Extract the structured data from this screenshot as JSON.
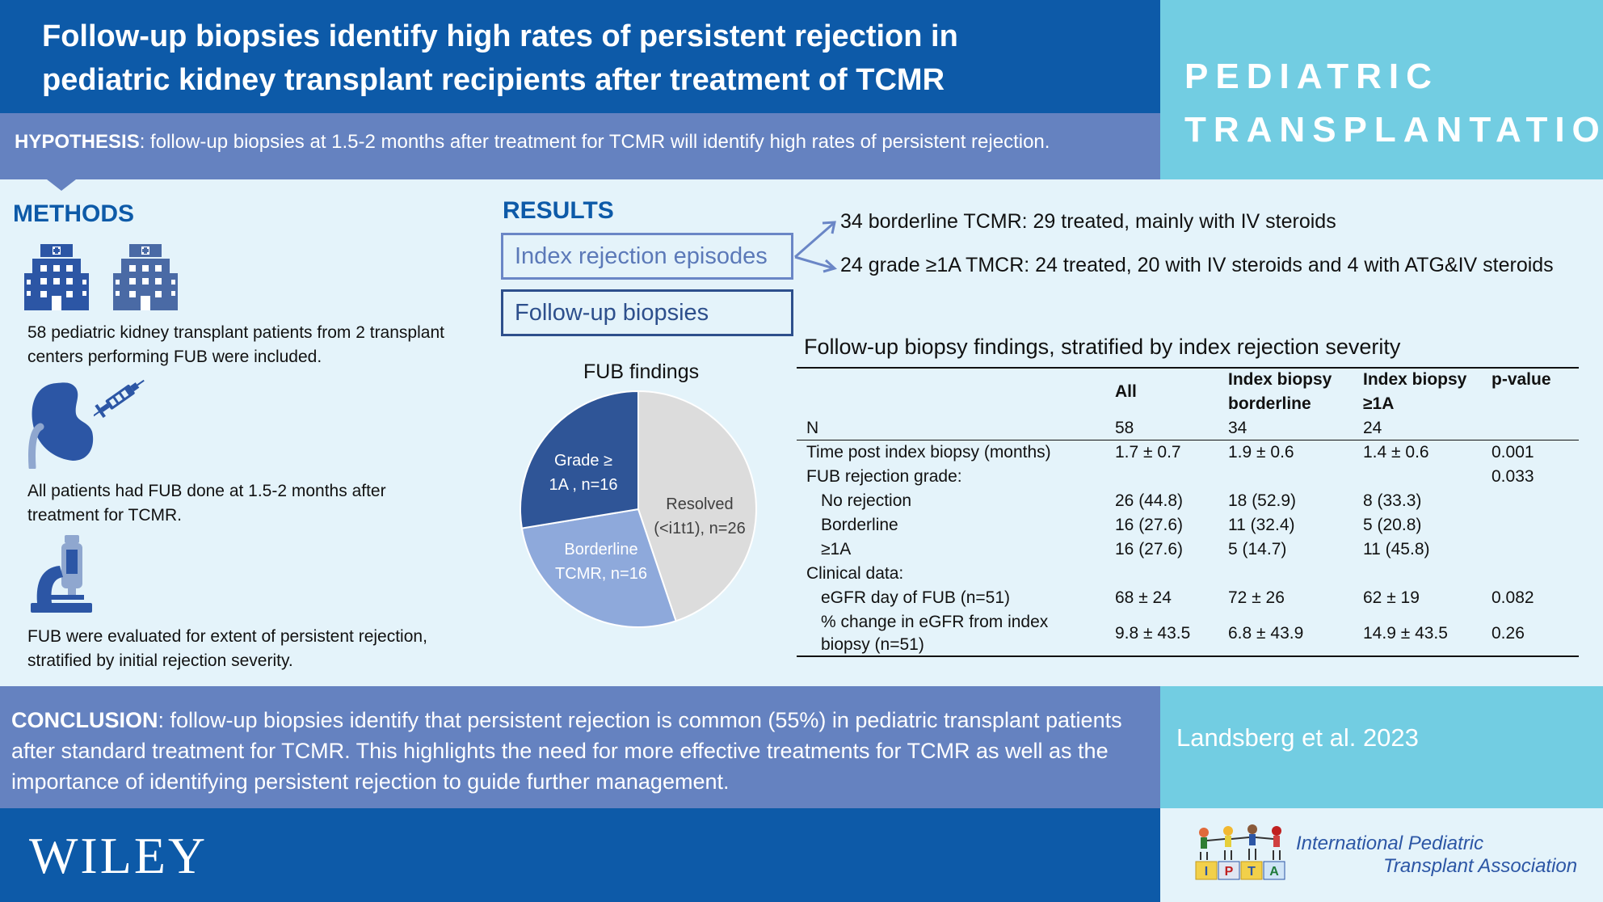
{
  "header": {
    "title_line1": "Follow-up biopsies identify high rates of persistent rejection in",
    "title_line2": "pediatric kidney transplant recipients after treatment of TCMR",
    "journal_line1": "PEDIATRIC",
    "journal_line2": "TRANSPLANTATION"
  },
  "hypothesis": {
    "label": "HYPOTHESIS",
    "text": ": follow-up biopsies at 1.5-2 months after treatment for TCMR will identify high rates of persistent rejection."
  },
  "methods": {
    "heading": "METHODS",
    "items": [
      "58 pediatric kidney transplant patients from 2 transplant centers performing FUB were included.",
      "All patients had FUB done at 1.5-2 months after treatment for TCMR.",
      "FUB were evaluated for extent of persistent rejection, stratified by initial rejection severity."
    ]
  },
  "results": {
    "heading": "RESULTS",
    "box1": "Index rejection episodes",
    "box2": "Follow-up biopsies",
    "arrow1": "34 borderline TCMR: 29 treated, mainly with IV steroids",
    "arrow2": "24 grade ≥1A TMCR: 24 treated, 20 with IV steroids and 4 with ATG&IV steroids"
  },
  "chart_data": {
    "type": "pie",
    "title": "FUB findings",
    "slices": [
      {
        "label_line1": "Resolved",
        "label_line2": "(<i1t1), n=26",
        "value": 26,
        "color": "#dcdcdc"
      },
      {
        "label_line1": "Borderline",
        "label_line2": "TCMR, n=16",
        "value": 16,
        "color": "#8ea9db"
      },
      {
        "label_line1": "Grade ≥",
        "label_line2": "1A , n=16",
        "value": 16,
        "color": "#2f5597"
      }
    ]
  },
  "table": {
    "title": "Follow-up biopsy findings, stratified by index rejection severity",
    "headers": [
      "All",
      "Index biopsy borderline",
      "Index biopsy ≥1A",
      "p-value"
    ],
    "header_lines": {
      "all": "All",
      "border_1": "Index biopsy",
      "border_2": "borderline",
      "grade_1": "Index biopsy",
      "grade_2": "≥1A",
      "p": "p-value"
    },
    "rows": [
      {
        "label": "N",
        "all": "58",
        "border": "34",
        "grade": "24",
        "p": ""
      },
      {
        "label": "Time post index biopsy (months)",
        "all": "1.7 ± 0.7",
        "border": "1.9 ± 0.6",
        "grade": "1.4 ± 0.6",
        "p": "0.001"
      },
      {
        "label": "FUB rejection grade:",
        "all": "",
        "border": "",
        "grade": "",
        "p": "0.033"
      },
      {
        "label": "No rejection",
        "all": "26 (44.8)",
        "border": "18 (52.9)",
        "grade": "8 (33.3)",
        "p": ""
      },
      {
        "label": "Borderline",
        "all": "16 (27.6)",
        "border": "11 (32.4)",
        "grade": "5 (20.8)",
        "p": ""
      },
      {
        "label": "≥1A",
        "all": "16 (27.6)",
        "border": "5 (14.7)",
        "grade": "11 (45.8)",
        "p": ""
      },
      {
        "label": "Clinical data:",
        "all": "",
        "border": "",
        "grade": "",
        "p": ""
      },
      {
        "label": "eGFR day of FUB (n=51)",
        "all": "68 ± 24",
        "border": "72 ± 26",
        "grade": "62 ± 19",
        "p": "0.082"
      },
      {
        "label_1": "% change in eGFR from index",
        "label_2": "biopsy (n=51)",
        "all": "9.8 ± 43.5",
        "border": "6.8 ± 43.9",
        "grade": "14.9 ± 43.5",
        "p": "0.26"
      }
    ]
  },
  "conclusion": {
    "label": "CONCLUSION",
    "text": ": follow-up biopsies identify that persistent rejection is common (55%) in pediatric transplant patients after standard treatment for TCMR. This highlights the need for more effective treatments for TCMR as well as the importance of identifying persistent rejection to guide further management."
  },
  "citation": "Landsberg et al. 2023",
  "footer": {
    "publisher": "WILEY",
    "ipta_line1": "International Pediatric",
    "ipta_line2": "Transplant Association",
    "ipta_blocks": [
      "I",
      "P",
      "T",
      "A"
    ]
  },
  "colors": {
    "primary": "#0d5aa8",
    "secondary": "#6582c0",
    "accent": "#72cde2",
    "background": "#e4f3fa"
  },
  "icons": [
    "hospital-icon",
    "kidney-icon",
    "syringe-icon",
    "microscope-icon",
    "arrow-icon"
  ]
}
